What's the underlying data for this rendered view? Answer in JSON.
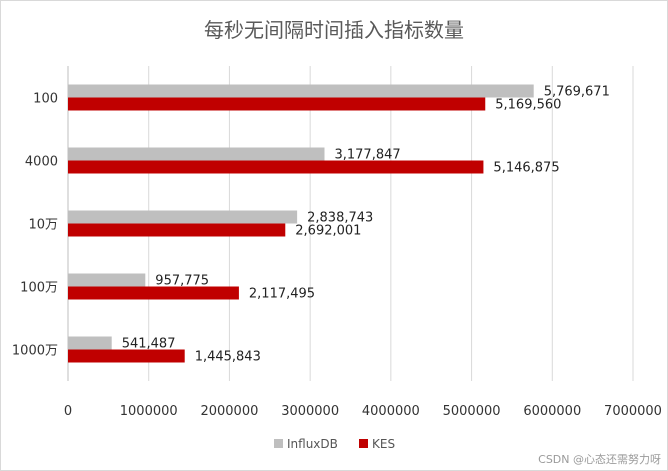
{
  "chart_data": {
    "type": "bar",
    "orientation": "horizontal",
    "title": "每秒无间隔时间插入指标数量",
    "categories": [
      "100",
      "4000",
      "10万",
      "100万",
      "1000万"
    ],
    "series": [
      {
        "name": "InfluxDB",
        "color": "#bfbfbf",
        "values": [
          5769671,
          3177847,
          2838743,
          957775,
          541487
        ],
        "labels": [
          "5,769,671",
          "3,177,847",
          "2,838,743",
          "957,775",
          "541,487"
        ]
      },
      {
        "name": "KES",
        "color": "#c00000",
        "values": [
          5169560,
          5146875,
          2692001,
          2117495,
          1445843
        ],
        "labels": [
          "5,169,560",
          "5,146,875",
          "2,692,001",
          "2,117,495",
          "1,445,843"
        ]
      }
    ],
    "xlim": [
      0,
      7000000
    ],
    "xticks": [
      0,
      1000000,
      2000000,
      3000000,
      4000000,
      5000000,
      6000000,
      7000000
    ],
    "xtick_labels": [
      "0",
      "1000000",
      "2000000",
      "3000000",
      "4000000",
      "5000000",
      "6000000",
      "7000000"
    ],
    "grid": true,
    "legend": "bottom"
  },
  "watermark": "CSDN @心态还需努力呀"
}
